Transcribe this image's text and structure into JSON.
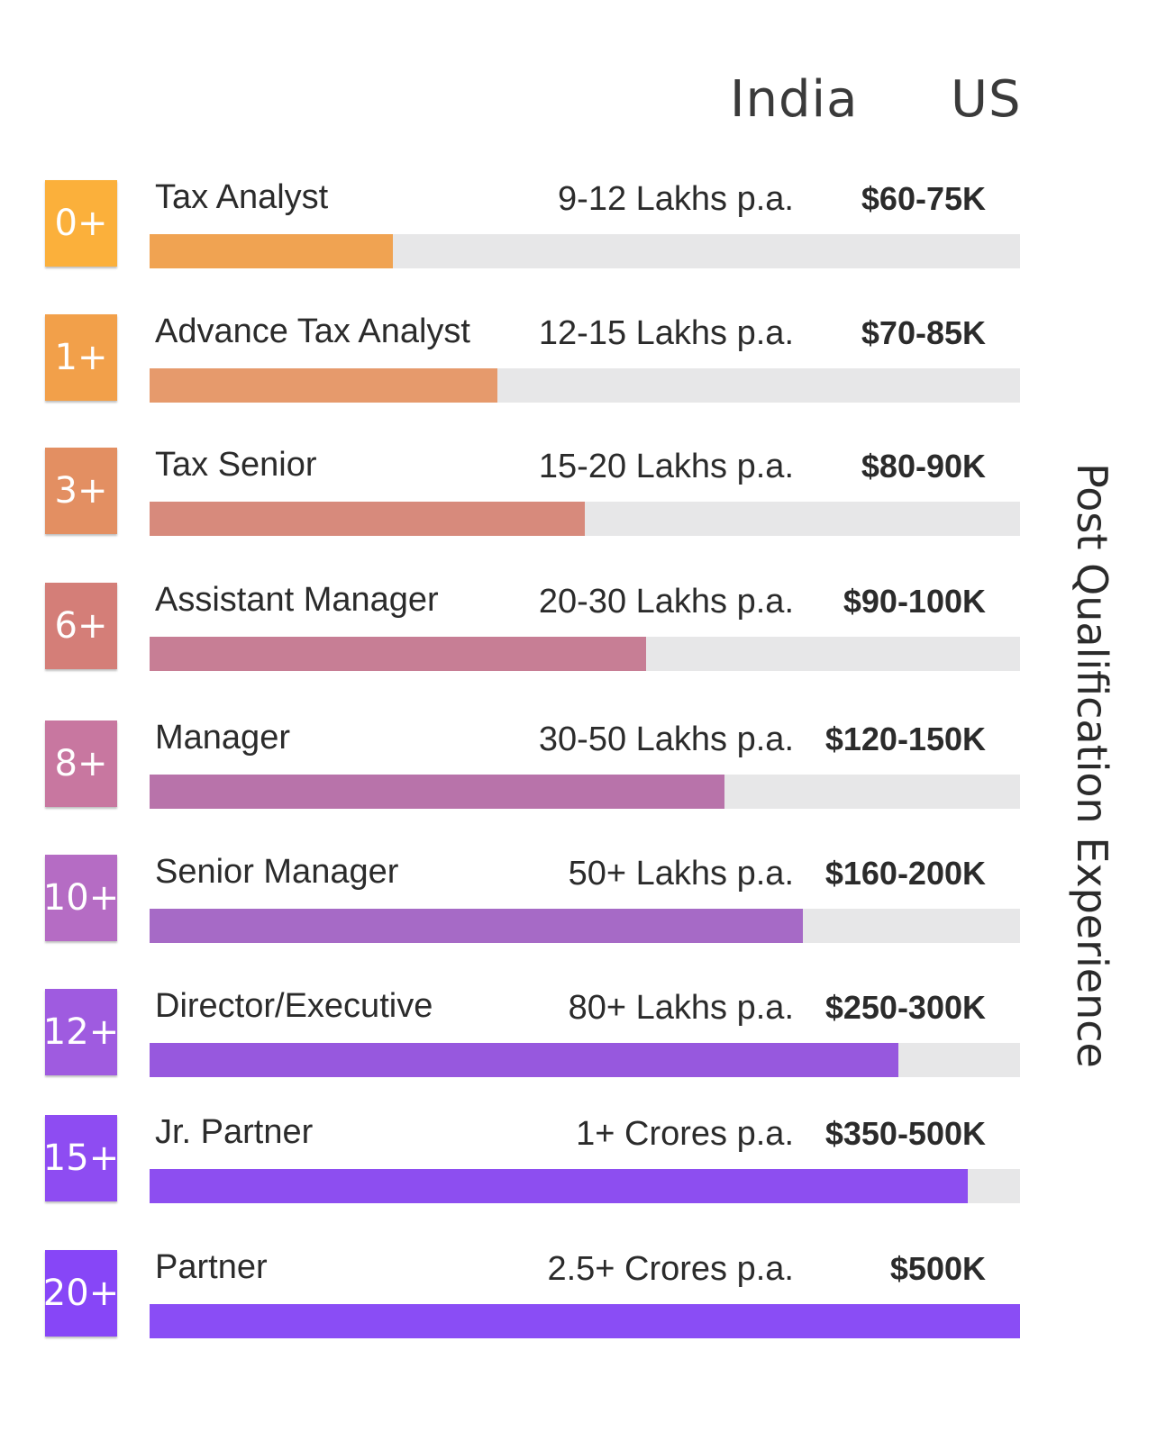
{
  "column_headers": {
    "india": "India",
    "us": "US"
  },
  "side_label": "Post Qualification Experience",
  "chart_data": {
    "type": "bar",
    "orientation": "horizontal",
    "title": "",
    "xlabel": "",
    "ylabel": "Post Qualification Experience",
    "xlim": [
      0,
      1
    ],
    "grid": false,
    "categories": [
      "Tax Analyst",
      "Advance Tax Analyst",
      "Tax Senior",
      "Assistant Manager",
      "Manager",
      "Senior Manager",
      "Director/Executive",
      "Jr. Partner",
      "Partner"
    ],
    "experience": [
      "0+",
      "1+",
      "3+",
      "6+",
      "8+",
      "10+",
      "12+",
      "15+",
      "20+"
    ],
    "india_salary": [
      "9-12 Lakhs p.a.",
      "12-15 Lakhs p.a.",
      "15-20 Lakhs p.a.",
      "20-30 Lakhs p.a.",
      "30-50 Lakhs p.a.",
      "50+ Lakhs p.a.",
      "80+ Lakhs p.a.",
      "1+ Crores p.a.",
      "2.5+ Crores p.a."
    ],
    "us_salary": [
      "$60-75K",
      "$70-85K",
      "$80-90K",
      "$90-100K",
      "$120-150K",
      "$160-200K",
      "$250-300K",
      "$350-500K",
      "$500K"
    ],
    "values": [
      0.28,
      0.4,
      0.5,
      0.57,
      0.66,
      0.75,
      0.86,
      0.94,
      1.0
    ],
    "colors": [
      "#f0a352",
      "#e69a6c",
      "#d78a7c",
      "#c77e95",
      "#b873aa",
      "#a66ac6",
      "#9758de",
      "#8d4ef0",
      "#8a4df5"
    ],
    "badge_colors": [
      "#fbb03b",
      "#f2a04a",
      "#e38f62",
      "#d47e78",
      "#c877a0",
      "#b56cc4",
      "#9f5be0",
      "#8e4cf2",
      "#8746f7"
    ]
  }
}
